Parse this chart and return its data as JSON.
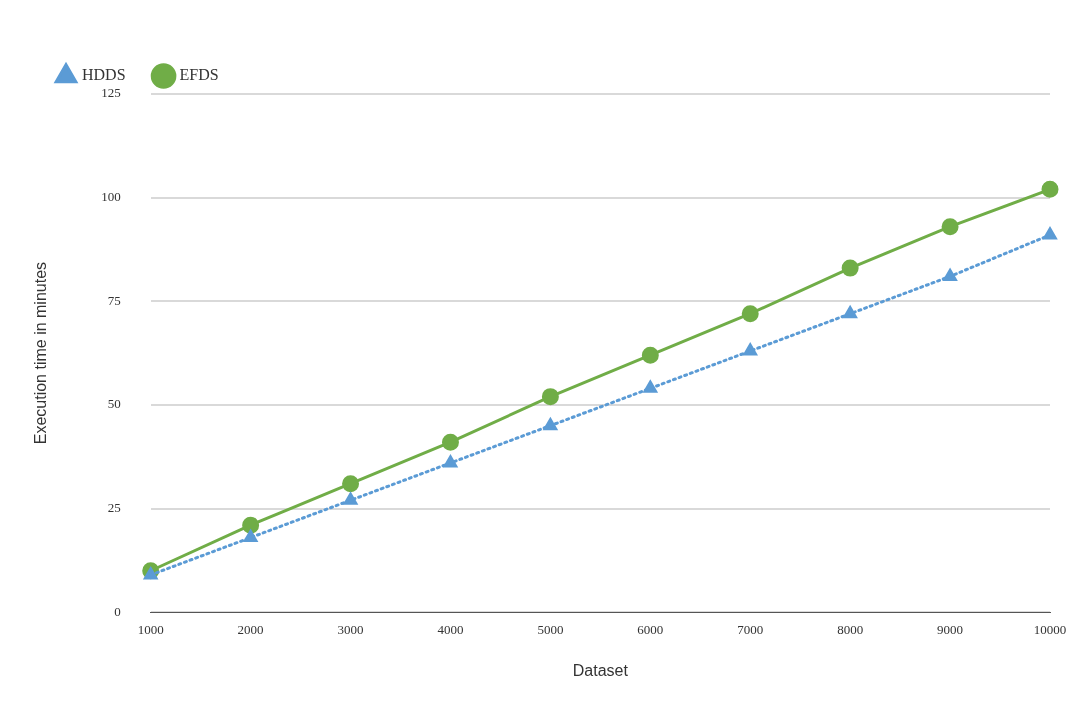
{
  "chart_data": {
    "type": "line",
    "xlabel": "Dataset",
    "ylabel": "Execution time in minutes",
    "categories": [
      "1000",
      "2000",
      "3000",
      "4000",
      "5000",
      "6000",
      "7000",
      "8000",
      "9000",
      "10000"
    ],
    "series": [
      {
        "name": "EFDS",
        "color": "#70ad47",
        "values": [
          10,
          21,
          31,
          41,
          52,
          62,
          72,
          83,
          93,
          102
        ],
        "marker": "circle",
        "line_style": "solid"
      },
      {
        "name": "HDDS",
        "color": "#5b9bd5",
        "values": [
          9,
          18,
          27,
          36,
          45,
          54,
          63,
          72,
          81,
          91
        ],
        "marker": "triangle",
        "line_style": "dotted"
      }
    ],
    "ylim": [
      0,
      125
    ],
    "yticks": [
      0,
      25,
      50,
      75,
      100,
      125
    ],
    "grid": "y",
    "legend": "top left"
  }
}
